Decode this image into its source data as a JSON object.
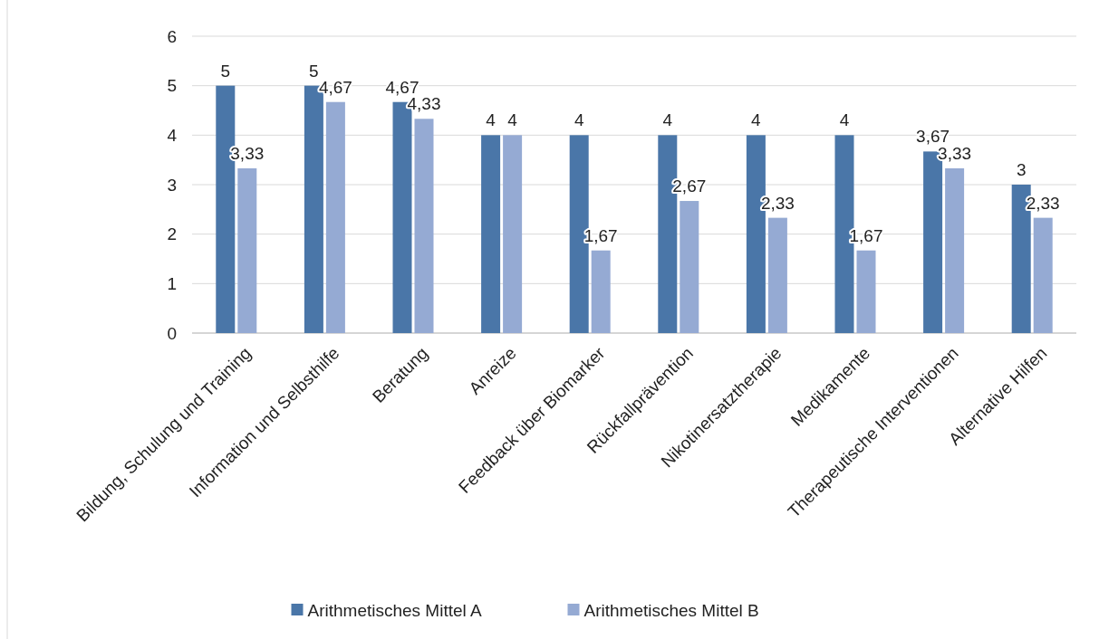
{
  "chart_data": {
    "type": "bar",
    "categories": [
      "Bildung, Schulung und Training",
      "Information und Selbsthilfe",
      "Beratung",
      "Anreize",
      "Feedback über Biomarker",
      "Rückfallprävention",
      "Nikotinersatztherapie",
      "Medikamente",
      "Therapeutische Interventionen",
      "Alternative Hilfen"
    ],
    "series": [
      {
        "name": "Arithmetisches Mittel A",
        "color": "#4a76a8",
        "values": [
          5,
          5,
          4.67,
          4,
          4,
          4,
          4,
          4,
          3.67,
          3
        ],
        "value_labels": [
          "5",
          "5",
          "4,67",
          "4",
          "4",
          "4",
          "4",
          "4",
          "3,67",
          "3"
        ]
      },
      {
        "name": "Arithmetisches Mittel B",
        "color": "#95aad3",
        "values": [
          3.33,
          4.67,
          4.33,
          4,
          1.67,
          2.67,
          2.33,
          1.67,
          3.33,
          2.33
        ],
        "value_labels": [
          "3,33",
          "4,67",
          "4,33",
          "4",
          "1,67",
          "2,67",
          "2,33",
          "1,67",
          "3,33",
          "2,33"
        ]
      }
    ],
    "ylim": [
      0,
      6
    ],
    "yticks": [
      0,
      1,
      2,
      3,
      4,
      5,
      6
    ],
    "grid": "y",
    "legend": "bottom"
  }
}
